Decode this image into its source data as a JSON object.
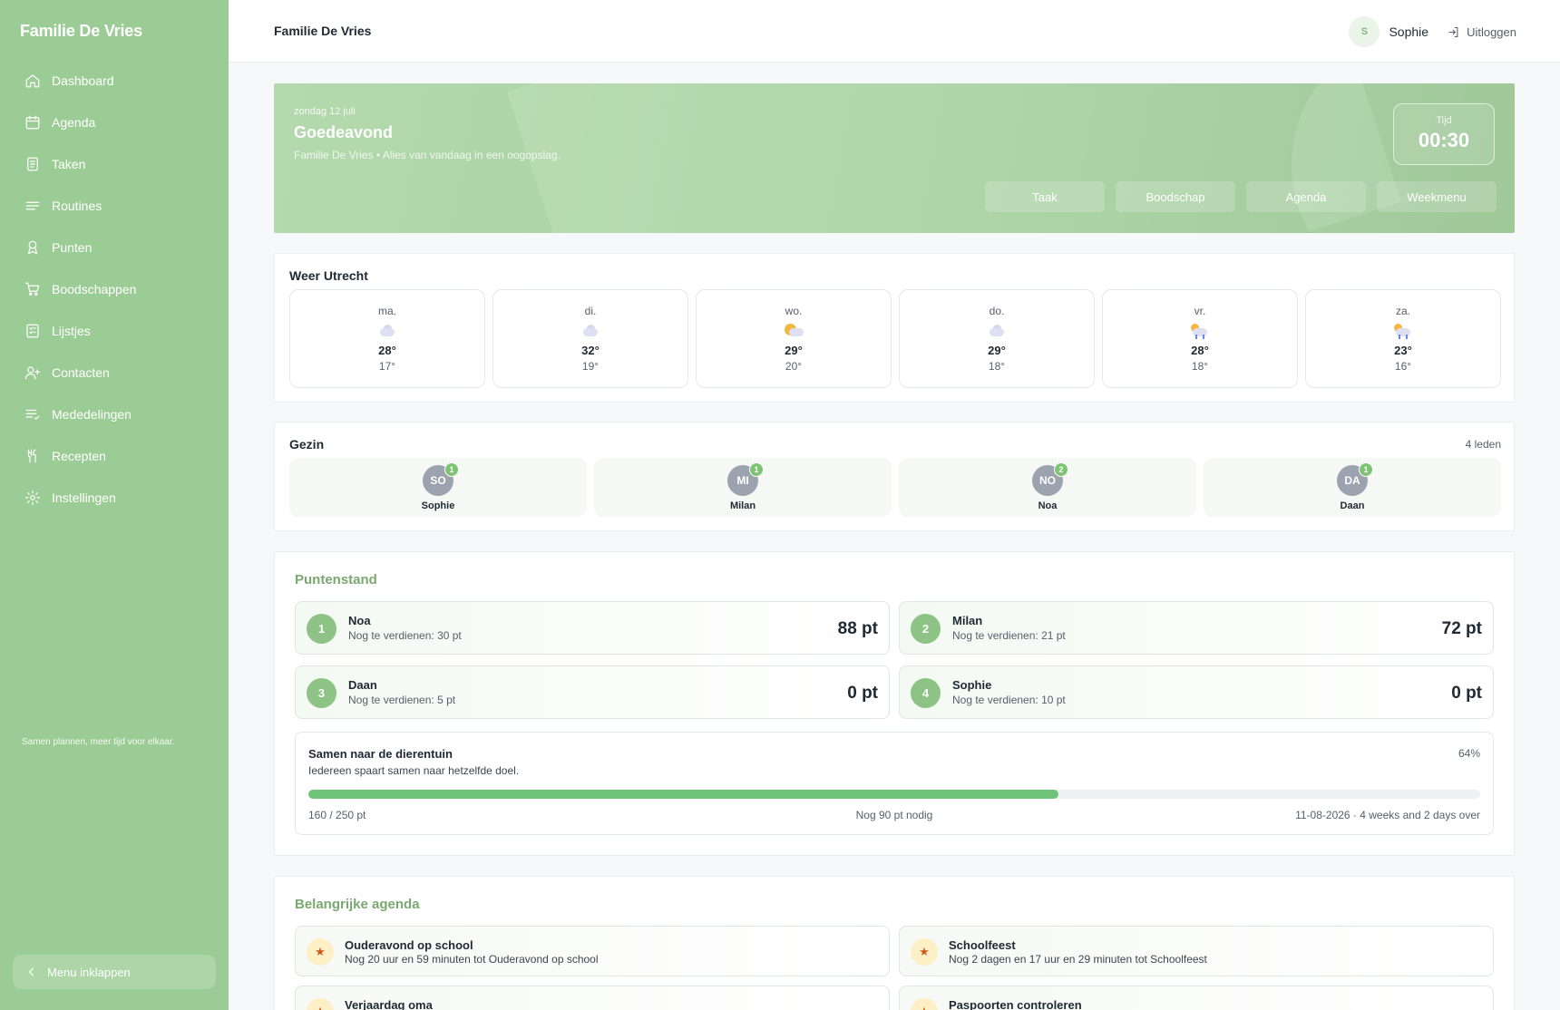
{
  "sidebar": {
    "brand": "Familie De Vries",
    "items": [
      {
        "label": "Dashboard",
        "icon": "home-icon"
      },
      {
        "label": "Agenda",
        "icon": "calendar-icon"
      },
      {
        "label": "Taken",
        "icon": "clipboard-icon"
      },
      {
        "label": "Routines",
        "icon": "lines-icon"
      },
      {
        "label": "Punten",
        "icon": "award-icon"
      },
      {
        "label": "Boodschappen",
        "icon": "cart-icon"
      },
      {
        "label": "Lijstjes",
        "icon": "checklist-icon"
      },
      {
        "label": "Contacten",
        "icon": "user-plus-icon"
      },
      {
        "label": "Mededelingen",
        "icon": "list-check-icon"
      },
      {
        "label": "Recepten",
        "icon": "utensils-icon"
      },
      {
        "label": "Instellingen",
        "icon": "gear-icon"
      }
    ],
    "tagline": "Samen plannen, meer tijd voor elkaar.",
    "collapse_label": "Menu inklappen"
  },
  "header": {
    "title": "Familie De Vries",
    "avatar_initial": "S",
    "user": "Sophie",
    "logout": "Uitloggen"
  },
  "hero": {
    "date": "zondag 12 juli",
    "greeting": "Goedeavond",
    "subtitle": "Familie De Vries • Alles van vandaag in een oogopslag.",
    "time_label": "Tijd",
    "time": "00:30",
    "actions": [
      "Taak",
      "Boodschap",
      "Agenda",
      "Weekmenu"
    ]
  },
  "weather": {
    "title": "Weer Utrecht",
    "days": [
      {
        "day": "ma.",
        "icon": "cloud-icon",
        "max": "28°",
        "min": "17°"
      },
      {
        "day": "di.",
        "icon": "cloud-icon",
        "max": "32°",
        "min": "19°"
      },
      {
        "day": "wo.",
        "icon": "sun-cloud-icon",
        "max": "29°",
        "min": "20°"
      },
      {
        "day": "do.",
        "icon": "cloud-icon",
        "max": "29°",
        "min": "18°"
      },
      {
        "day": "vr.",
        "icon": "rain-icon",
        "max": "28°",
        "min": "18°"
      },
      {
        "day": "za.",
        "icon": "rain-icon",
        "max": "23°",
        "min": "16°"
      }
    ]
  },
  "family": {
    "title": "Gezin",
    "count": "4 leden",
    "members": [
      {
        "initials": "SO",
        "name": "Sophie",
        "badge": "1"
      },
      {
        "initials": "MI",
        "name": "Milan",
        "badge": "1"
      },
      {
        "initials": "NO",
        "name": "Noa",
        "badge": "2"
      },
      {
        "initials": "DA",
        "name": "Daan",
        "badge": "1"
      }
    ]
  },
  "points": {
    "title": "Puntenstand",
    "scores": [
      {
        "rank": "1",
        "name": "Noa",
        "sub": "Nog te verdienen: 30 pt",
        "points": "88 pt"
      },
      {
        "rank": "2",
        "name": "Milan",
        "sub": "Nog te verdienen: 21 pt",
        "points": "72 pt"
      },
      {
        "rank": "3",
        "name": "Daan",
        "sub": "Nog te verdienen: 5 pt",
        "points": "0 pt"
      },
      {
        "rank": "4",
        "name": "Sophie",
        "sub": "Nog te verdienen: 10 pt",
        "points": "0 pt"
      }
    ],
    "goal": {
      "title": "Samen naar de dierentuin",
      "subtitle": "Iedereen spaart samen naar hetzelfde doel.",
      "percent_label": "64%",
      "progress": 0.64,
      "current": "160 / 250 pt",
      "remaining": "Nog 90 pt nodig",
      "deadline": "11-08-2026 · 4 weeks and 2 days over"
    }
  },
  "agenda": {
    "title": "Belangrijke agenda",
    "items": [
      {
        "title": "Ouderavond op school",
        "sub": "Nog 20 uur en 59 minuten tot Ouderavond op school"
      },
      {
        "title": "Schoolfeest",
        "sub": "Nog 2 dagen en 17 uur en 29 minuten tot Schoolfeest"
      },
      {
        "title": "Verjaardag oma",
        "sub": ""
      },
      {
        "title": "Paspoorten controleren",
        "sub": ""
      }
    ]
  },
  "colors": {
    "sidebar": "#9ccc95",
    "accent": "#7aa86f",
    "progress": "#70c47a"
  }
}
